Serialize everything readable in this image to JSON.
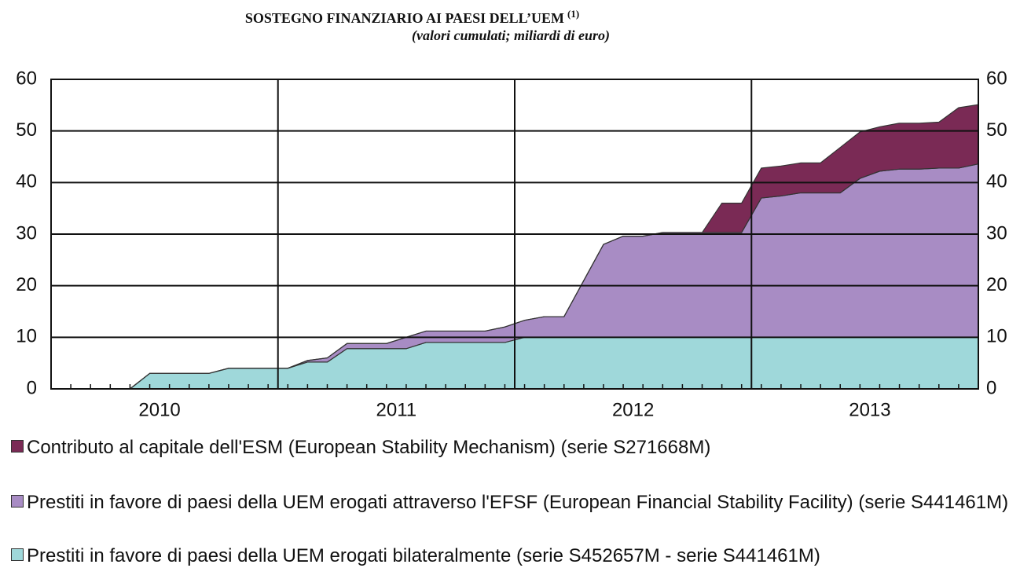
{
  "chart_data": {
    "type": "stacked-area",
    "title": "SOSTEGNO FINANZIARIO AI PAESI DELL’UEM",
    "title_note": "(1)",
    "subtitle": "(valori cumulati; miliardi di euro)",
    "x": [
      0,
      1,
      2,
      3,
      4,
      5,
      6,
      7,
      8,
      9,
      10,
      11,
      12,
      13,
      14,
      15,
      16,
      17,
      18,
      19,
      20,
      21,
      22,
      23,
      24,
      25,
      26,
      27,
      28,
      29,
      30,
      31,
      32,
      33,
      34,
      35,
      36,
      37,
      38,
      39,
      40,
      41,
      42,
      43,
      44,
      45,
      46,
      47
    ],
    "xlim": [
      0,
      47
    ],
    "xticks": [
      {
        "value": 5.5,
        "label": "2010"
      },
      {
        "value": 17.5,
        "label": "2011"
      },
      {
        "value": 29.5,
        "label": "2012"
      },
      {
        "value": 41.5,
        "label": "2013"
      }
    ],
    "ylim": [
      0,
      60
    ],
    "yticks": [
      0,
      10,
      20,
      30,
      40,
      50,
      60
    ],
    "grid": true,
    "series": [
      {
        "name": "Prestiti in favore di paesi della UEM erogati bilateralmente (serie S452657M - serie S441461M)",
        "color": "#9fd8da",
        "values": [
          0,
          0,
          0,
          0,
          0,
          3,
          3,
          3,
          3,
          4,
          4,
          4,
          4,
          5.2,
          5.2,
          7.8,
          7.8,
          7.8,
          7.8,
          9,
          9,
          9,
          9,
          9,
          10,
          10,
          10,
          10,
          10,
          10,
          10,
          10,
          10,
          10,
          10,
          10,
          10,
          10,
          10,
          10,
          10,
          10,
          10,
          10,
          10,
          10,
          10,
          10
        ]
      },
      {
        "name": "Prestiti in favore di paesi della UEM erogati attraverso l'EFSF (European Financial Stability Facility) (serie S441461M)",
        "color": "#a88cc4",
        "values": [
          0,
          0,
          0,
          0,
          0,
          0,
          0,
          0,
          0,
          0,
          0,
          0,
          0,
          0.3,
          0.8,
          1,
          1,
          1,
          2.2,
          2.2,
          2.2,
          2.2,
          2.2,
          3,
          3.3,
          4,
          4,
          11,
          18,
          19.6,
          19.6,
          20.3,
          20.3,
          20.3,
          20.3,
          20.3,
          27,
          27.4,
          28,
          28,
          28,
          30.8,
          32.2,
          32.6,
          32.6,
          32.8,
          32.8,
          33.6
        ]
      },
      {
        "name": "Contributo al capitale dell'ESM (European Stability Mechanism) (serie S271668M)",
        "color": "#7a2a55",
        "values": [
          0,
          0,
          0,
          0,
          0,
          0,
          0,
          0,
          0,
          0,
          0,
          0,
          0,
          0,
          0,
          0,
          0,
          0,
          0,
          0,
          0,
          0,
          0,
          0,
          0,
          0,
          0,
          0,
          0,
          0,
          0,
          0,
          0,
          0,
          5.7,
          5.7,
          5.8,
          5.8,
          5.8,
          5.8,
          8.8,
          9,
          8.6,
          8.9,
          8.9,
          8.9,
          11.7,
          11.5
        ]
      }
    ]
  }
}
